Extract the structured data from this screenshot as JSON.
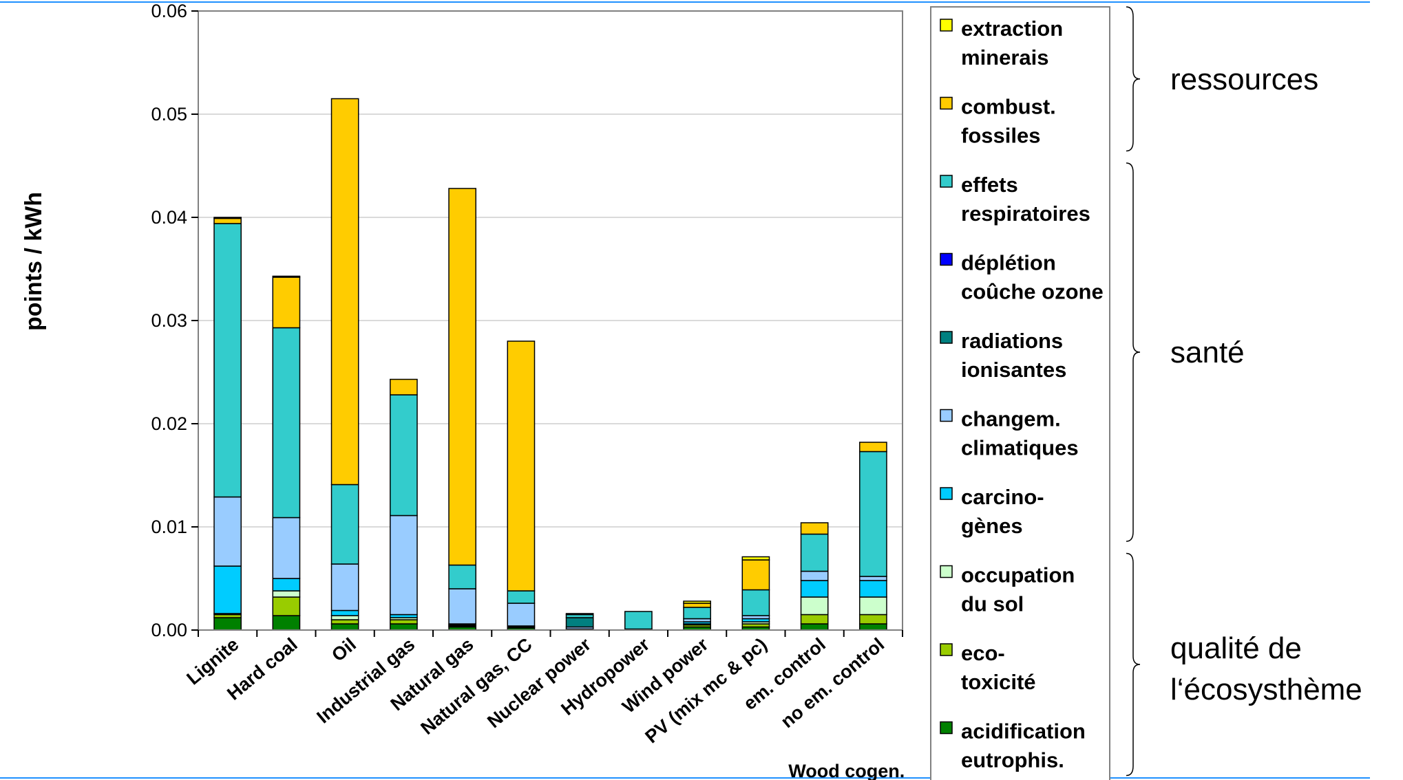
{
  "chart_data": {
    "type": "bar",
    "stacked": true,
    "ylabel": "points / kWh",
    "ylim": [
      0,
      0.06
    ],
    "yticks": [
      "0.00",
      "0.01",
      "0.02",
      "0.03",
      "0.04",
      "0.05",
      "0.06"
    ],
    "grid": true,
    "categories": [
      "Lignite",
      "Hard coal",
      "Oil",
      "Industrial gas",
      "Natural gas",
      "Natural gas, CC",
      "Nuclear power",
      "Hydropower",
      "Wind power",
      "PV (mix mc & pc)",
      "em. control",
      "no em. control"
    ],
    "group_label": {
      "text": "Wood cogen.",
      "spans": [
        "em. control",
        "no em. control"
      ]
    },
    "series": [
      {
        "name": "acidification eutrophis.",
        "legend_lines": [
          "acidification",
          "eutrophis."
        ],
        "color": "#008000",
        "values": [
          0.0012,
          0.0014,
          0.0006,
          0.0006,
          0.0003,
          0.0002,
          0.0001,
          0.0,
          0.0003,
          0.0003,
          0.0006,
          0.0006
        ]
      },
      {
        "name": "eco-toxicité",
        "legend_lines": [
          "eco-",
          "toxicité"
        ],
        "color": "#99CC00",
        "values": [
          0.0003,
          0.0018,
          0.0004,
          0.0004,
          0.0001,
          0.0001,
          0.0,
          0.0,
          0.0002,
          0.0003,
          0.0009,
          0.0009
        ]
      },
      {
        "name": "occupation du sol",
        "legend_lines": [
          "occupation",
          "du sol"
        ],
        "color": "#CCFFCC",
        "values": [
          0.0001,
          0.0006,
          0.0004,
          0.0002,
          0.0001,
          0.0001,
          0.0,
          0.0,
          0.0001,
          0.0002,
          0.0017,
          0.0017
        ]
      },
      {
        "name": "carcinogènes",
        "legend_lines": [
          "carcino-",
          "gènes"
        ],
        "color": "#00CCFF",
        "values": [
          0.0046,
          0.0012,
          0.0005,
          0.0003,
          0.0001,
          0.0,
          0.0,
          0.0,
          0.0002,
          0.0003,
          0.0016,
          0.0016
        ]
      },
      {
        "name": "changem. climatiques",
        "legend_lines": [
          "changem.",
          "climatiques"
        ],
        "color": "#99CCFF",
        "values": [
          0.0067,
          0.0059,
          0.0045,
          0.0096,
          0.0034,
          0.0022,
          0.0002,
          0.0001,
          0.0003,
          0.0003,
          0.0009,
          0.0004
        ]
      },
      {
        "name": "radiations ionisantes",
        "legend_lines": [
          "radiations",
          "ionisantes"
        ],
        "color": "#008080",
        "values": [
          0.0,
          0.0,
          0.0,
          0.0,
          0.0,
          0.0,
          0.0009,
          0.0,
          0.0,
          0.0,
          0.0,
          0.0
        ]
      },
      {
        "name": "déplétion coûche ozone",
        "legend_lines": [
          "déplétion",
          "coûche ozone"
        ],
        "color": "#0000FF",
        "values": [
          0.0,
          0.0,
          0.0,
          0.0,
          0.0,
          0.0,
          0.0,
          0.0,
          0.0,
          0.0,
          0.0,
          0.0
        ]
      },
      {
        "name": "effets respiratoires",
        "legend_lines": [
          "effets",
          "respiratoires"
        ],
        "color": "#33CCCC",
        "values": [
          0.0265,
          0.0184,
          0.0077,
          0.0117,
          0.0023,
          0.0012,
          0.0003,
          0.0017,
          0.0011,
          0.0025,
          0.0036,
          0.0121
        ]
      },
      {
        "name": "combust. fossiles",
        "legend_lines": [
          "combust.",
          "fossiles"
        ],
        "color": "#FFCC00",
        "values": [
          0.0005,
          0.0049,
          0.0374,
          0.0015,
          0.0365,
          0.0242,
          0.0001,
          0.0,
          0.0004,
          0.0029,
          0.0011,
          0.0009
        ]
      },
      {
        "name": "extraction minerais",
        "legend_lines": [
          "extraction",
          "minerais"
        ],
        "color": "#FFFF00",
        "values": [
          0.0001,
          0.0001,
          0.0,
          0.0,
          0.0,
          0.0,
          0.0,
          0.0,
          0.0002,
          0.0003,
          0.0,
          0.0
        ]
      }
    ],
    "legend_order": [
      "extraction minerais",
      "combust. fossiles",
      "effets respiratoires",
      "déplétion coûche ozone",
      "radiations ionisantes",
      "changem. climatiques",
      "carcinogènes",
      "occupation du sol",
      "eco-toxicité",
      "acidification eutrophis."
    ],
    "legend_position": "right",
    "groups": [
      {
        "label_lines": [
          "ressources"
        ],
        "from": "extraction minerais",
        "to": "combust. fossiles"
      },
      {
        "label_lines": [
          "santé"
        ],
        "from": "effets respiratoires",
        "to": "carcinogènes"
      },
      {
        "label_lines": [
          "qualité de",
          "l‘écosysthème"
        ],
        "from": "occupation du sol",
        "to": "acidification eutrophis."
      }
    ]
  },
  "colors": {
    "frame_line": "#1E90FF"
  }
}
